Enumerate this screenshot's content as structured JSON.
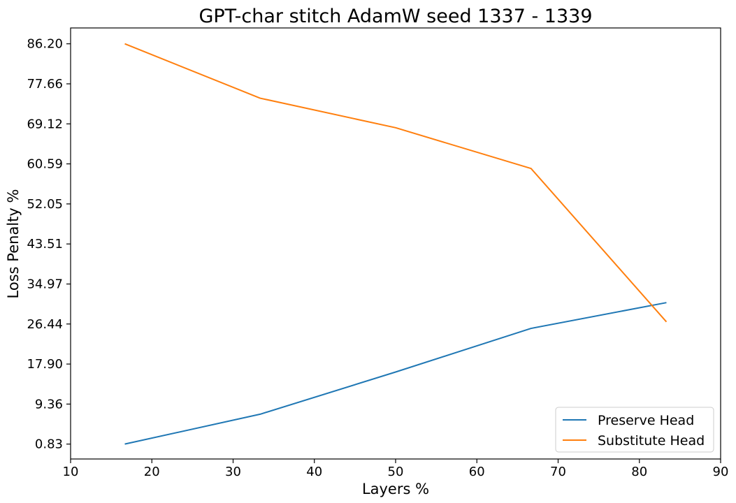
{
  "chart_data": {
    "type": "line",
    "title": "GPT-char stitch AdamW seed 1337 - 1339",
    "xlabel": "Layers %",
    "ylabel": "Loss Penalty %",
    "xlim": [
      10,
      90
    ],
    "ylim": [
      -2.35,
      89.58
    ],
    "xticks": [
      "10",
      "20",
      "30",
      "40",
      "50",
      "60",
      "70",
      "80",
      "90"
    ],
    "yticks": [
      "0.83",
      "9.36",
      "17.90",
      "26.44",
      "34.97",
      "43.51",
      "52.05",
      "60.59",
      "69.12",
      "77.66",
      "86.20"
    ],
    "x": [
      16.67,
      33.33,
      50.0,
      66.67,
      83.33
    ],
    "grid": false,
    "legend_position": "lower-right",
    "series": [
      {
        "name": "Preserve Head",
        "color": "#1f77b4",
        "values": [
          0.83,
          7.2,
          16.2,
          25.5,
          31.0
        ]
      },
      {
        "name": "Substitute Head",
        "color": "#ff7f0e",
        "values": [
          86.2,
          74.6,
          68.3,
          59.6,
          26.9
        ]
      }
    ]
  }
}
